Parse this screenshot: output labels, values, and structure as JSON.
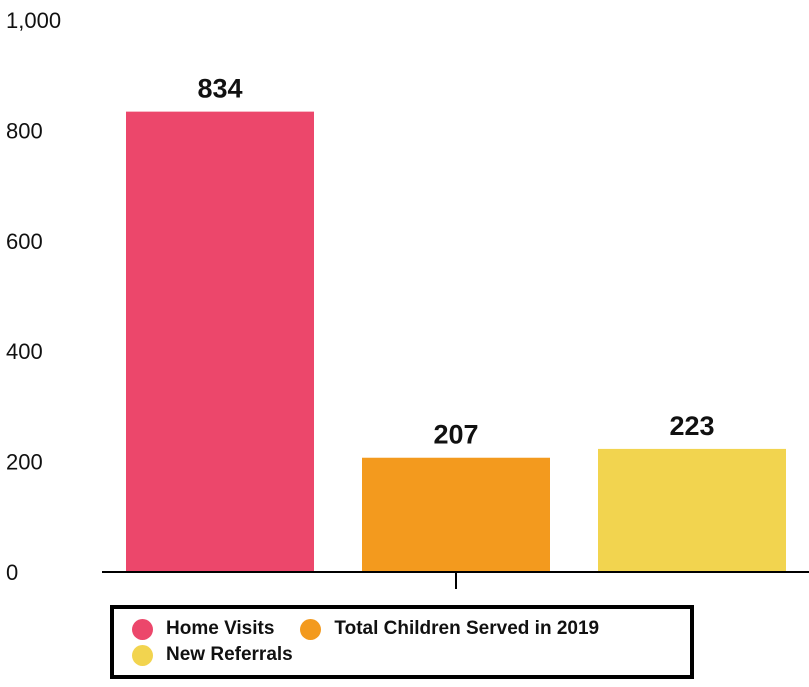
{
  "chart_data": {
    "type": "bar",
    "categories": [
      "Home Visits",
      "Total Children Served in 2019",
      "New Referrals"
    ],
    "values": [
      834,
      207,
      223
    ],
    "colors": [
      "#ec476b",
      "#f39a1e",
      "#f2d44f"
    ],
    "ylim": [
      0,
      1000
    ],
    "yticks": [
      0,
      200,
      400,
      600,
      800,
      1000
    ],
    "ytick_labels": [
      "0",
      "200",
      "400",
      "600",
      "800",
      "1,000"
    ],
    "data_labels": [
      "834",
      "207",
      "223"
    ],
    "grid": false,
    "legend_position": "bottom",
    "legend": [
      {
        "label": "Home Visits",
        "color": "#ec476b"
      },
      {
        "label": "Total Children Served in 2019",
        "color": "#f39a1e"
      },
      {
        "label": "New Referrals",
        "color": "#f2d44f"
      }
    ]
  }
}
